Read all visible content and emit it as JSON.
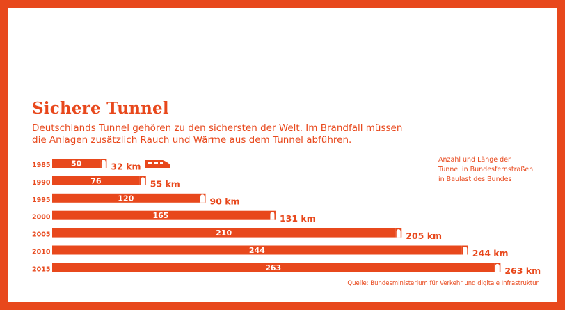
{
  "title": "Sichere Tunnel",
  "subtitle_line1": "Deutschlands Tunnel gehören zu den sichersten der Welt. Im Brandfall müssen",
  "subtitle_line2": "die Anlagen zusätzlich Rauch und Wärme aus dem Tunnel abführen.",
  "legend_lines": [
    "Anzahl und Länge der",
    "Tunnel in Bundesfernstraßen",
    "in Baulast des Bundes"
  ],
  "source": "Quelle: Bundesministerium für Verkehr und digitale Infrastruktur",
  "colors": {
    "accent": "#e8481c",
    "background": "#ffffff"
  },
  "icons": [
    "train-icon",
    "tunnel-portal-icon"
  ],
  "chart_data": {
    "type": "bar",
    "orientation": "horizontal",
    "categories": [
      "1985",
      "1990",
      "1995",
      "2000",
      "2005",
      "2010",
      "2015"
    ],
    "series": [
      {
        "name": "Anzahl",
        "values": [
          50,
          76,
          120,
          165,
          210,
          244,
          263
        ]
      },
      {
        "name": "Länge",
        "values": [
          32,
          55,
          90,
          131,
          205,
          244,
          263
        ]
      }
    ],
    "length_labels": [
      "32 km",
      "55 km",
      "90 km",
      "131 km",
      "205 km",
      "244 km",
      "263 km"
    ],
    "bar_length_basis": "Länge",
    "grid": false
  }
}
